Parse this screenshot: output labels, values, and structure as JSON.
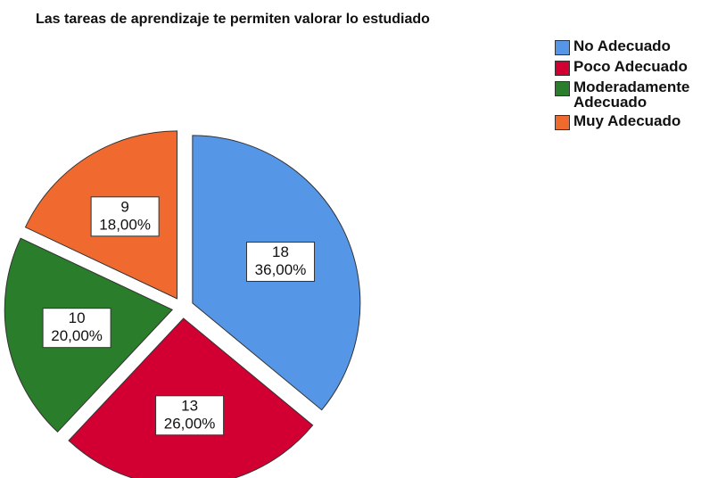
{
  "chart_data": {
    "type": "pie",
    "title": "Las tareas de aprendizaje te permiten valorar lo estudiado",
    "categories": [
      "No Adecuado",
      "Poco Adecuado",
      "Moderadamente Adecuado",
      "Muy Adecuado"
    ],
    "values": [
      18,
      13,
      10,
      9
    ],
    "percentages": [
      {
        "value": 36,
        "label": "36,00%"
      },
      {
        "value": 26,
        "label": "26,00%"
      },
      {
        "value": 20,
        "label": "20,00%"
      },
      {
        "value": 18,
        "label": "18,00%"
      }
    ],
    "colors": [
      "#5596e6",
      "#d20032",
      "#2a7d2a",
      "#f06a30"
    ],
    "legend": "top-right"
  }
}
